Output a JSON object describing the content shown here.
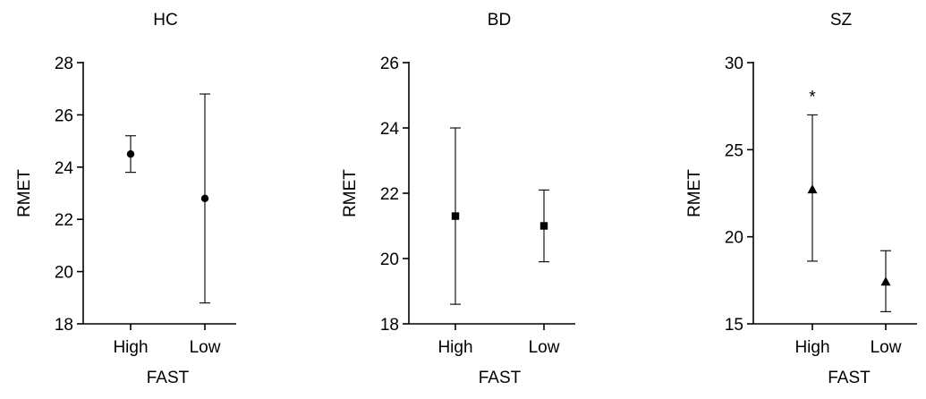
{
  "chart_data": [
    {
      "type": "scatter",
      "title": "HC",
      "xlabel": "FAST",
      "ylabel": "RMET",
      "categories": [
        "High",
        "Low"
      ],
      "marker": "circle",
      "ylim": [
        18,
        28
      ],
      "yticks": [
        18,
        20,
        22,
        24,
        26,
        28
      ],
      "points": [
        {
          "category": "High",
          "mean": 24.5,
          "lower": 23.8,
          "upper": 25.2
        },
        {
          "category": "Low",
          "mean": 22.8,
          "lower": 18.8,
          "upper": 26.8
        }
      ],
      "annotations": []
    },
    {
      "type": "scatter",
      "title": "BD",
      "xlabel": "FAST",
      "ylabel": "RMET",
      "categories": [
        "High",
        "Low"
      ],
      "marker": "square",
      "ylim": [
        18,
        26
      ],
      "yticks": [
        18,
        20,
        22,
        24,
        26
      ],
      "points": [
        {
          "category": "High",
          "mean": 21.3,
          "lower": 18.6,
          "upper": 24.0
        },
        {
          "category": "Low",
          "mean": 21.0,
          "lower": 19.9,
          "upper": 22.1
        }
      ],
      "annotations": []
    },
    {
      "type": "scatter",
      "title": "SZ",
      "xlabel": "FAST",
      "ylabel": "RMET",
      "categories": [
        "High",
        "Low"
      ],
      "marker": "triangle",
      "ylim": [
        15,
        30
      ],
      "yticks": [
        15,
        20,
        25,
        30
      ],
      "points": [
        {
          "category": "High",
          "mean": 22.7,
          "lower": 18.6,
          "upper": 27.0
        },
        {
          "category": "Low",
          "mean": 17.4,
          "lower": 15.7,
          "upper": 19.2
        }
      ],
      "annotations": [
        {
          "category": "High",
          "text": "*"
        }
      ]
    }
  ]
}
